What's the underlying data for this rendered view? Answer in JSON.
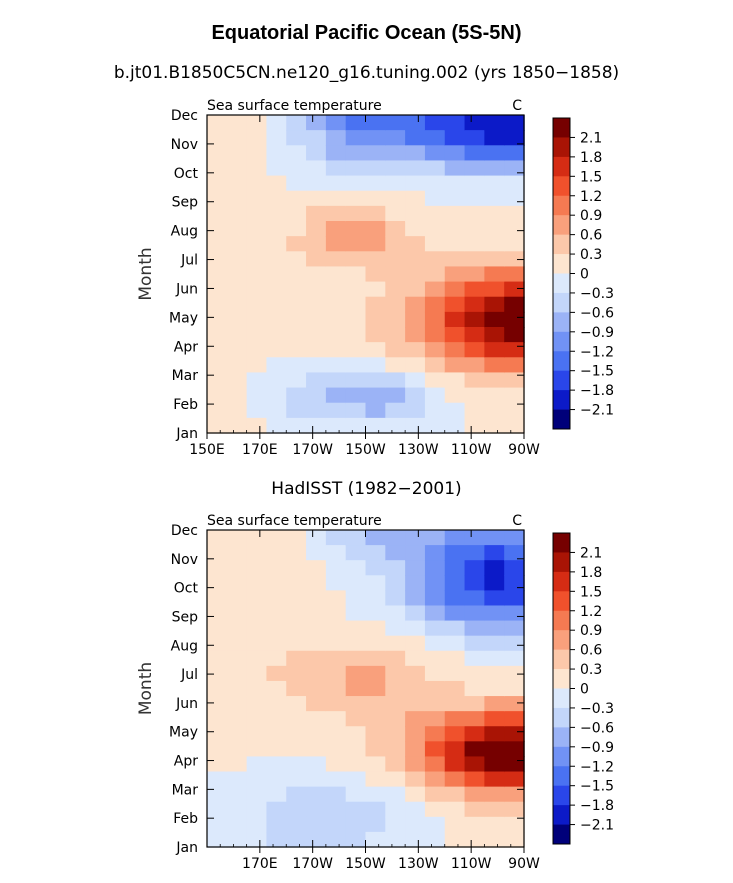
{
  "figure": {
    "title": "Equatorial Pacific Ocean (5S-5N)"
  },
  "chart_data": [
    {
      "type": "heatmap",
      "subtitle": "b.jt01.B1850C5CN.ne120_g16.tuning.002 (yrs 1850−1858)",
      "variable": "Sea surface temperature",
      "units": "C",
      "ylabel": "Month",
      "xticks": [
        "150E",
        "170E",
        "170W",
        "150W",
        "130W",
        "110W",
        "90W"
      ],
      "yticks": [
        "Jan",
        "Feb",
        "Mar",
        "Apr",
        "May",
        "Jun",
        "Jul",
        "Aug",
        "Sep",
        "Oct",
        "Nov",
        "Dec"
      ],
      "xlim": [
        150,
        270
      ],
      "colorbar_labels": [
        "2.1",
        "1.8",
        "1.5",
        "1.2",
        "0.9",
        "0.6",
        "0.3",
        "0",
        "−0.3",
        "−0.6",
        "−0.9",
        "−1.2",
        "−1.5",
        "−1.8",
        "−2.1"
      ],
      "features": {
        "warm_peak": {
          "lon": 268,
          "month": 3.9,
          "value": 2.2
        },
        "cold_peak": {
          "lon": 258,
          "month": 10.7,
          "value": -1.9
        }
      }
    },
    {
      "type": "heatmap",
      "subtitle": "HadISST (1982−2001)",
      "variable": "Sea surface temperature",
      "units": "C",
      "ylabel": "Month",
      "xticks": [
        "170E",
        "170W",
        "150W",
        "130W",
        "110W",
        "90W"
      ],
      "yticks": [
        "Jan",
        "Feb",
        "Mar",
        "Apr",
        "May",
        "Jun",
        "Jul",
        "Aug",
        "Sep",
        "Oct",
        "Nov",
        "Dec"
      ],
      "xlim": [
        150,
        270
      ],
      "colorbar_labels": [
        "2.1",
        "1.8",
        "1.5",
        "1.2",
        "0.9",
        "0.6",
        "0.3",
        "0",
        "−0.3",
        "−0.6",
        "−0.9",
        "−1.2",
        "−1.5",
        "−1.8",
        "−2.1"
      ],
      "features": {
        "warm_peak": {
          "lon": 265,
          "month": 3.3,
          "value": 2.3
        },
        "cold_peak": {
          "lon": 262,
          "month": 9.3,
          "value": -1.6
        }
      }
    }
  ],
  "colors": [
    "#00007a",
    "#0c1ac8",
    "#2a46ea",
    "#4a72f2",
    "#7192f5",
    "#9bb3f6",
    "#c3d6fa",
    "#dce9fc",
    "#fde5d0",
    "#fcc8aa",
    "#f9a07c",
    "#f57a52",
    "#f0512c",
    "#d52c14",
    "#a91405",
    "#760000"
  ]
}
